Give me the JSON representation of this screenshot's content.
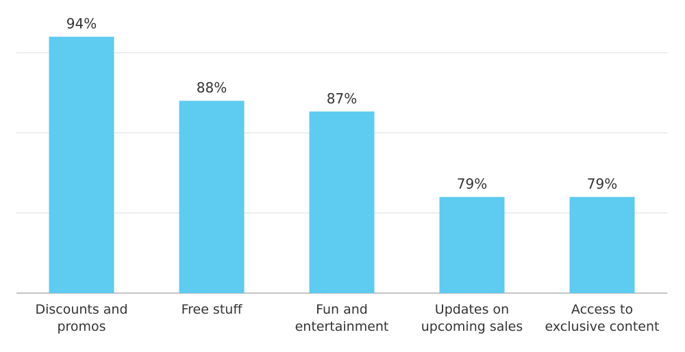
{
  "chart_data": {
    "type": "bar",
    "categories": [
      "Discounts and\npromos",
      "Free stuff",
      "Fun and\nentertainment",
      "Updates on\nupcoming sales",
      "Access to\nexclusive content"
    ],
    "values": [
      94,
      88,
      87,
      79,
      79
    ],
    "value_labels": [
      "94%",
      "88%",
      "87%",
      "79%",
      "79%"
    ],
    "color": "#5ecbf0",
    "ylim": [
      70,
      95
    ],
    "yticks": [
      70,
      77.5,
      85,
      92.5
    ],
    "grid": true
  }
}
